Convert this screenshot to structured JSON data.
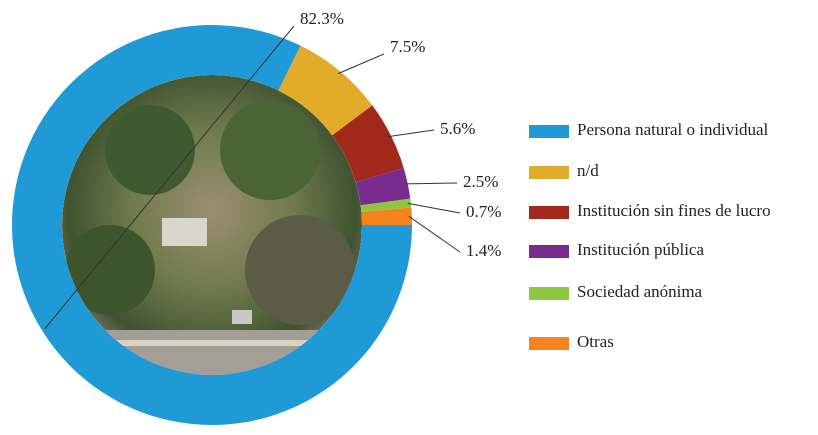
{
  "chart_data": {
    "type": "donut",
    "categories": [
      "Persona natural o individual",
      "n/d",
      "Institución sin fines de lucro",
      "Institución pública",
      "Sociedad anónima",
      "Otras"
    ],
    "values": [
      82.3,
      7.5,
      5.6,
      2.5,
      0.7,
      1.4
    ],
    "value_labels": [
      "82.3%",
      "7.5%",
      "5.6%",
      "2.5%",
      "0.7%",
      "1.4%"
    ],
    "colors": [
      "#1f9ad6",
      "#e2ac2a",
      "#a3281c",
      "#7a2b90",
      "#8dc63f",
      "#f5841f"
    ],
    "legend": "right"
  }
}
